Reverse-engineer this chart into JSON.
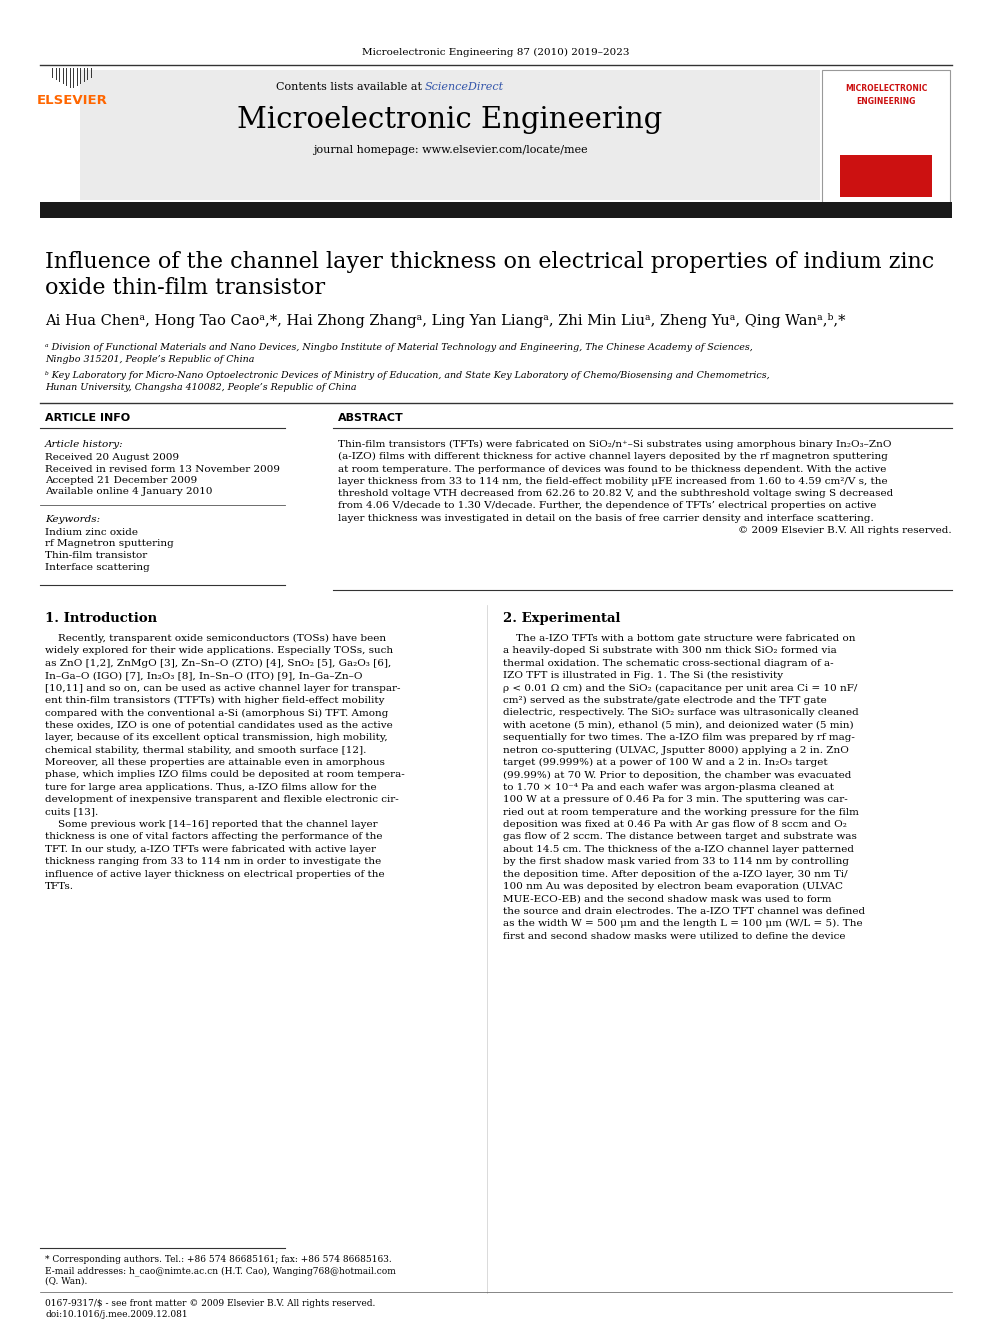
{
  "journal_header": "Microelectronic Engineering 87 (2010) 2019–2023",
  "journal_name": "Microelectronic Engineering",
  "contents_line": "Contents lists available at ScienceDirect",
  "homepage_line": "journal homepage: www.elsevier.com/locate/mee",
  "elsevier_color": "#FF6600",
  "sciencedirect_color": "#3355AA",
  "blue_link_color": "#3355AA",
  "title_line1": "Influence of the channel layer thickness on electrical properties of indium zinc",
  "title_line2": "oxide thin-film transistor",
  "authors": "Ai Hua Chenᵃ, Hong Tao Caoᵃ,*, Hai Zhong Zhangᵃ, Ling Yan Liangᵃ, Zhi Min Liuᵃ, Zheng Yuᵃ, Qing Wanᵃ,ᵇ,*",
  "affil_a1": "ᵃ Division of Functional Materials and Nano Devices, Ningbo Institute of Material Technology and Engineering, The Chinese Academy of Sciences,",
  "affil_a2": "Ningbo 315201, People’s Republic of China",
  "affil_b1": "ᵇ Key Laboratory for Micro-Nano Optoelectronic Devices of Ministry of Education, and State Key Laboratory of Chemo/Biosensing and Chemometrics,",
  "affil_b2": "Hunan University, Changsha 410082, People’s Republic of China",
  "article_info_header": "ARTICLE INFO",
  "abstract_header": "ABSTRACT",
  "article_history_label": "Article history:",
  "hist_line1": "Received 20 August 2009",
  "hist_line2": "Received in revised form 13 November 2009",
  "hist_line3": "Accepted 21 December 2009",
  "hist_line4": "Available online 4 January 2010",
  "keywords_label": "Keywords:",
  "kw1": "Indium zinc oxide",
  "kw2": "rf Magnetron sputtering",
  "kw3": "Thin-film transistor",
  "kw4": "Interface scattering",
  "abstract_lines": [
    "Thin-film transistors (TFTs) were fabricated on SiO₂/n⁺–Si substrates using amorphous binary In₂O₃–ZnO",
    "(a-IZO) films with different thickness for active channel layers deposited by the rf magnetron sputtering",
    "at room temperature. The performance of devices was found to be thickness dependent. With the active",
    "layer thickness from 33 to 114 nm, the field-effect mobility μFE increased from 1.60 to 4.59 cm²/V s, the",
    "threshold voltage VTH decreased from 62.26 to 20.82 V, and the subthreshold voltage swing S decreased",
    "from 4.06 V/decade to 1.30 V/decade. Further, the dependence of TFTs’ electrical properties on active",
    "layer thickness was investigated in detail on the basis of free carrier density and interface scattering."
  ],
  "abstract_copy": "© 2009 Elsevier B.V. All rights reserved.",
  "intro_header": "1. Introduction",
  "intro_lines": [
    "    Recently, transparent oxide semiconductors (TOSs) have been",
    "widely explored for their wide applications. Especially TOSs, such",
    "as ZnO [1,2], ZnMgO [3], Zn–Sn–O (ZTO) [4], SnO₂ [5], Ga₂O₃ [6],",
    "In–Ga–O (IGO) [7], In₂O₃ [8], In–Sn–O (ITO) [9], In–Ga–Zn–O",
    "[10,11] and so on, can be used as active channel layer for transpar-",
    "ent thin-film transistors (TTFTs) with higher field-effect mobility",
    "compared with the conventional a-Si (amorphous Si) TFT. Among",
    "these oxides, IZO is one of potential candidates used as the active",
    "layer, because of its excellent optical transmission, high mobility,",
    "chemical stability, thermal stability, and smooth surface [12].",
    "Moreover, all these properties are attainable even in amorphous",
    "phase, which implies IZO films could be deposited at room tempera-",
    "ture for large area applications. Thus, a-IZO films allow for the",
    "development of inexpensive transparent and flexible electronic cir-",
    "cuits [13].",
    "    Some previous work [14–16] reported that the channel layer",
    "thickness is one of vital factors affecting the performance of the",
    "TFT. In our study, a-IZO TFTs were fabricated with active layer",
    "thickness ranging from 33 to 114 nm in order to investigate the",
    "influence of active layer thickness on electrical properties of the",
    "TFTs."
  ],
  "exp_header": "2. Experimental",
  "exp_lines": [
    "    The a-IZO TFTs with a bottom gate structure were fabricated on",
    "a heavily-doped Si substrate with 300 nm thick SiO₂ formed via",
    "thermal oxidation. The schematic cross-sectional diagram of a-",
    "IZO TFT is illustrated in Fig. 1. The Si (the resistivity",
    "ρ < 0.01 Ω cm) and the SiO₂ (capacitance per unit area Ci = 10 nF/",
    "cm²) served as the substrate/gate electrode and the TFT gate",
    "dielectric, respectively. The SiO₂ surface was ultrasonically cleaned",
    "with acetone (5 min), ethanol (5 min), and deionized water (5 min)",
    "sequentially for two times. The a-IZO film was prepared by rf mag-",
    "netron co-sputtering (ULVAC, Jsputter 8000) applying a 2 in. ZnO",
    "target (99.999%) at a power of 100 W and a 2 in. In₂O₃ target",
    "(99.99%) at 70 W. Prior to deposition, the chamber was evacuated",
    "to 1.70 × 10⁻⁴ Pa and each wafer was argon-plasma cleaned at",
    "100 W at a pressure of 0.46 Pa for 3 min. The sputtering was car-",
    "ried out at room temperature and the working pressure for the film",
    "deposition was fixed at 0.46 Pa with Ar gas flow of 8 sccm and O₂",
    "gas flow of 2 sccm. The distance between target and substrate was",
    "about 14.5 cm. The thickness of the a-IZO channel layer patterned",
    "by the first shadow mask varied from 33 to 114 nm by controlling",
    "the deposition time. After deposition of the a-IZO layer, 30 nm Ti/",
    "100 nm Au was deposited by electron beam evaporation (ULVAC",
    "MUE-ECO-EB) and the second shadow mask was used to form",
    "the source and drain electrodes. The a-IZO TFT channel was defined",
    "as the width W = 500 μm and the length L = 100 μm (W/L = 5). The",
    "first and second shadow masks were utilized to define the device"
  ],
  "footnote1": "* Corresponding authors. Tel.: +86 574 86685161; fax: +86 574 86685163.",
  "footnote2": "E-mail addresses: h_cao@nimte.ac.cn (H.T. Cao), Wanging768@hotmail.com",
  "footnote3": "(Q. Wan).",
  "bottom1": "0167-9317/$ - see front matter © 2009 Elsevier B.V. All rights reserved.",
  "bottom2": "doi:10.1016/j.mee.2009.12.081",
  "bg_color": "#FFFFFF",
  "header_bar_color": "#1a1a1a",
  "text_color": "#000000",
  "gray_bg": "#EBEBEB"
}
